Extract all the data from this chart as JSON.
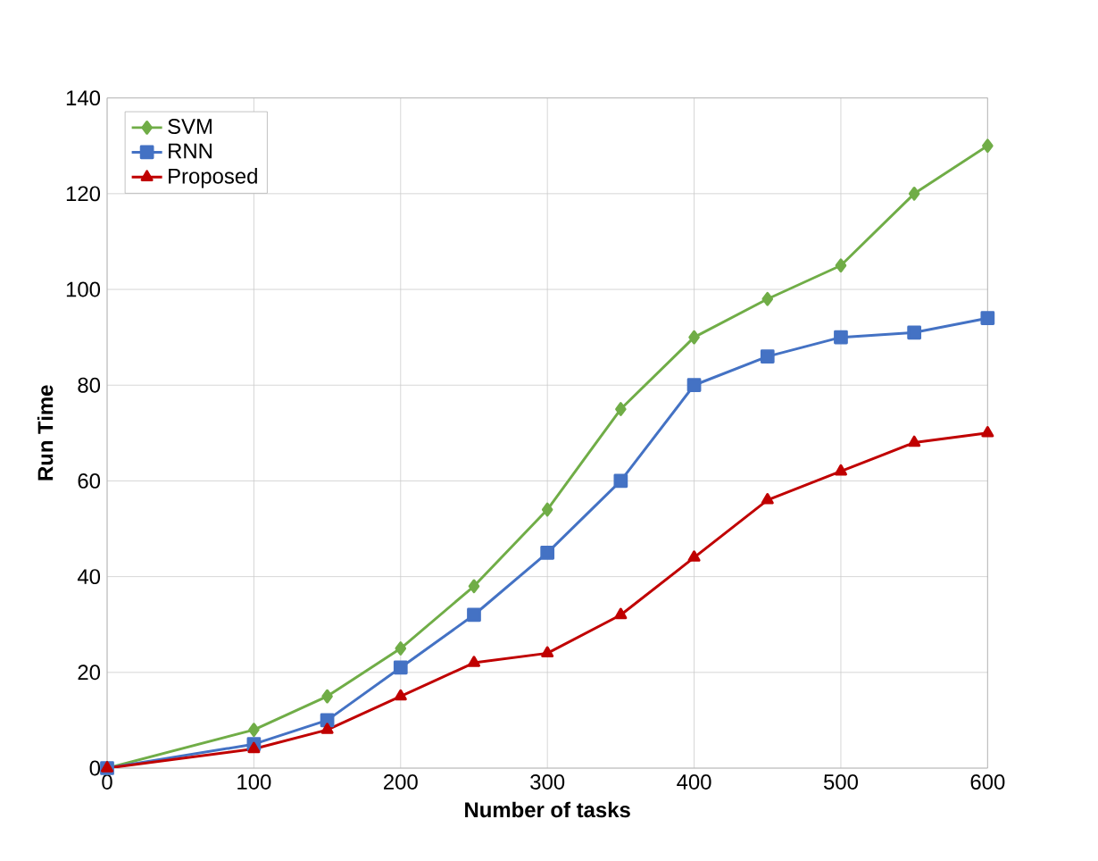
{
  "chart_data": {
    "type": "line",
    "xlabel": "Number of tasks",
    "ylabel": "Run Time",
    "x": [
      0,
      100,
      150,
      200,
      250,
      300,
      350,
      400,
      450,
      500,
      550,
      600
    ],
    "series": [
      {
        "name": "SVM",
        "color": "#70ad47",
        "marker": "diamond",
        "values": [
          0,
          8,
          15,
          25,
          38,
          54,
          75,
          90,
          98,
          105,
          120,
          130
        ]
      },
      {
        "name": "RNN",
        "color": "#4472c4",
        "marker": "square",
        "values": [
          0,
          5,
          10,
          21,
          32,
          45,
          60,
          80,
          86,
          90,
          91,
          94
        ]
      },
      {
        "name": "Proposed",
        "color": "#c00000",
        "marker": "triangle",
        "values": [
          0,
          4,
          8,
          15,
          22,
          24,
          32,
          44,
          56,
          62,
          68,
          70
        ]
      }
    ],
    "xlim": [
      0,
      600
    ],
    "ylim": [
      0,
      140
    ],
    "xticks": [
      0,
      100,
      200,
      300,
      400,
      500,
      600
    ],
    "yticks": [
      0,
      20,
      40,
      60,
      80,
      100,
      120,
      140
    ],
    "grid": true,
    "legend": "top left",
    "line_style": "solid"
  }
}
